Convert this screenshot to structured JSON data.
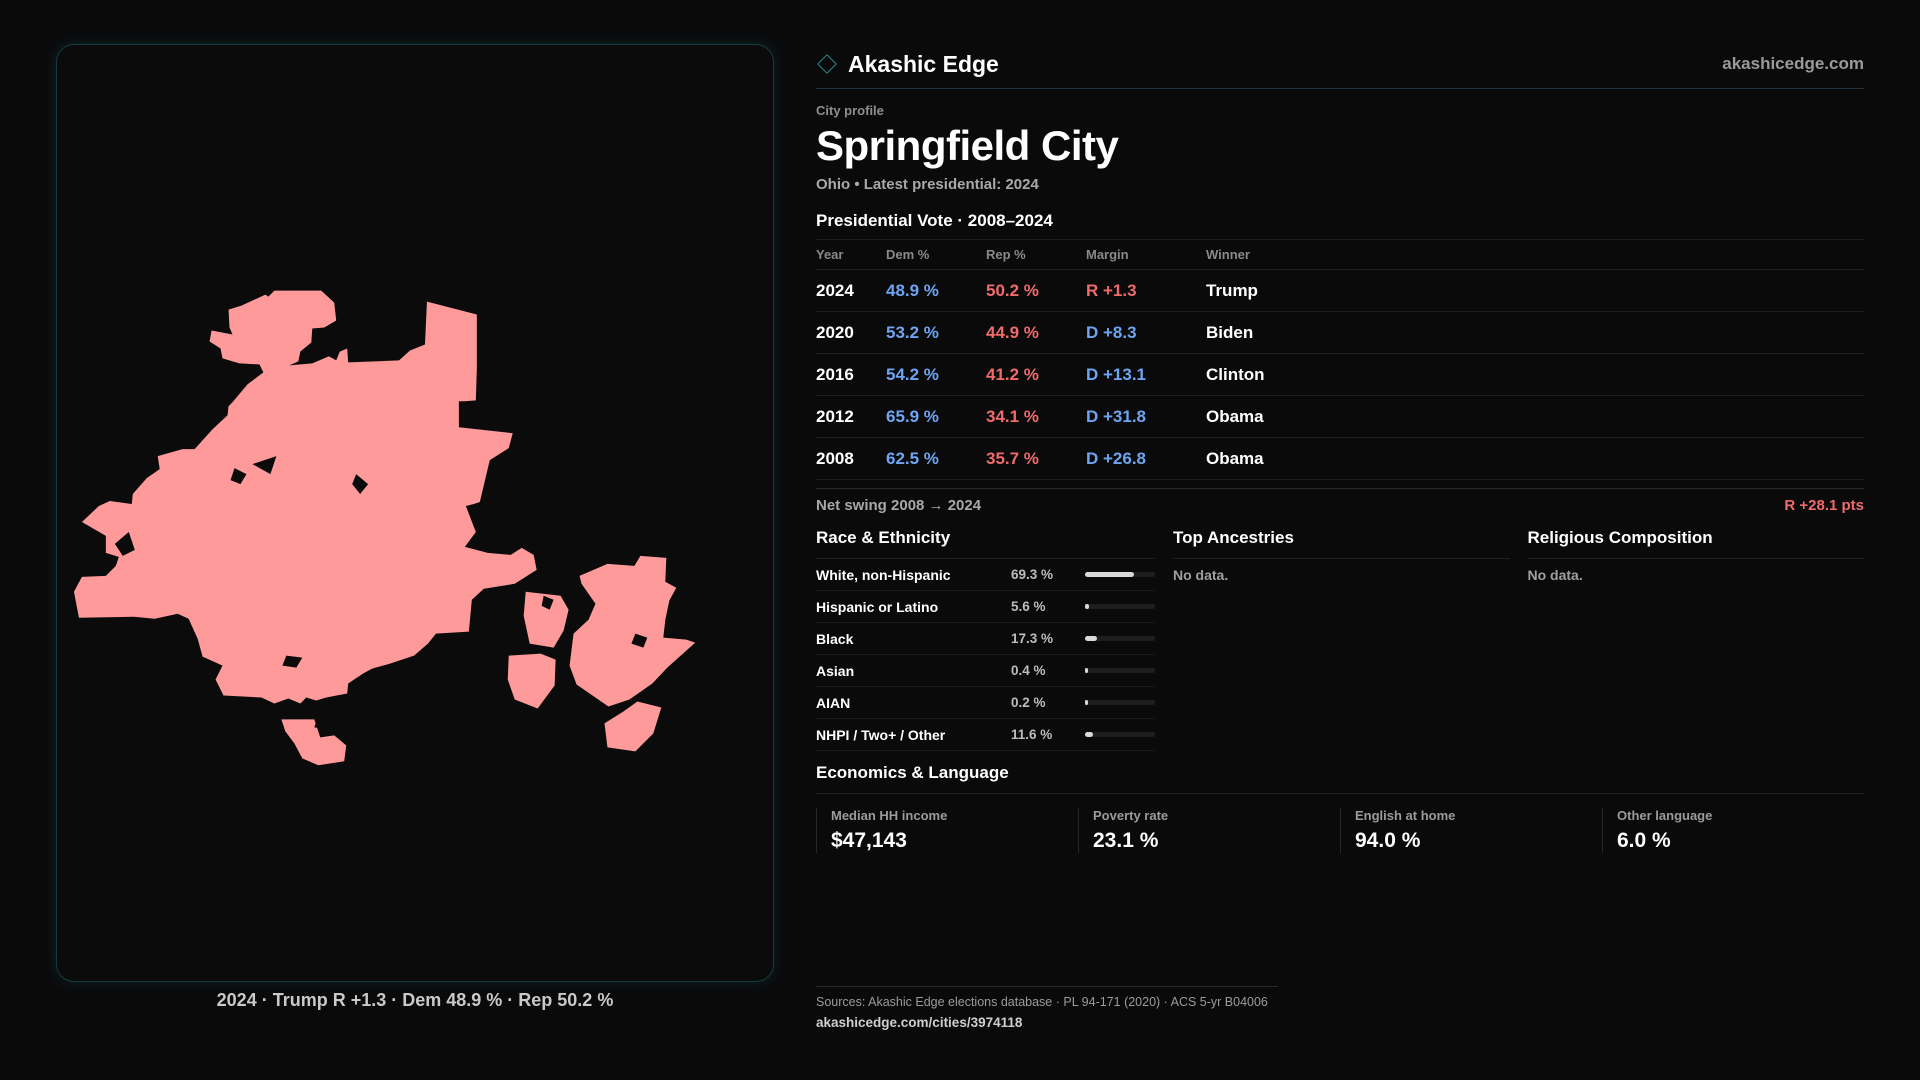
{
  "brand": {
    "name": "Akashic Edge",
    "site": "akashicedge.com",
    "icon": "diamond-icon",
    "accent": "#1d8f96"
  },
  "profile": {
    "eyebrow": "City profile",
    "city": "Springfield City",
    "subtitle": "Ohio • Latest presidential: 2024"
  },
  "map": {
    "fill": "#ff9a9a",
    "caption": "2024 · Trump R +1.3 · Dem 48.9 % · Rep 50.2 %"
  },
  "votes": {
    "title": "Presidential Vote · 2008–2024",
    "headers": {
      "year": "Year",
      "dem": "Dem %",
      "rep": "Rep %",
      "margin": "Margin",
      "winner": "Winner"
    },
    "rows": [
      {
        "year": "2024",
        "dem": "48.9 %",
        "rep": "50.2 %",
        "margin": "R +1.3",
        "winner": "Trump"
      },
      {
        "year": "2020",
        "dem": "53.2 %",
        "rep": "44.9 %",
        "margin": "D +8.3",
        "winner": "Biden"
      },
      {
        "year": "2016",
        "dem": "54.2 %",
        "rep": "41.2 %",
        "margin": "D +13.1",
        "winner": "Clinton"
      },
      {
        "year": "2012",
        "dem": "65.9 %",
        "rep": "34.1 %",
        "margin": "D +31.8",
        "winner": "Obama"
      },
      {
        "year": "2008",
        "dem": "62.5 %",
        "rep": "35.7 %",
        "margin": "D +26.8",
        "winner": "Obama"
      }
    ],
    "swing_label": "Net swing 2008 → 2024",
    "swing_value": "R +28.1 pts",
    "colors": {
      "dem": "#6ea5f2",
      "rep": "#f06b6b"
    }
  },
  "race": {
    "title": "Race & Ethnicity",
    "rows": [
      {
        "label": "White, non-Hispanic",
        "value": "69.3 %",
        "pct": 69.3
      },
      {
        "label": "Hispanic or Latino",
        "value": "5.6 %",
        "pct": 5.6
      },
      {
        "label": "Black",
        "value": "17.3 %",
        "pct": 17.3
      },
      {
        "label": "Asian",
        "value": "0.4 %",
        "pct": 0.4
      },
      {
        "label": "AIAN",
        "value": "0.2 %",
        "pct": 0.2
      },
      {
        "label": "NHPI / Two+ / Other",
        "value": "11.6 %",
        "pct": 11.6
      }
    ]
  },
  "ancestries": {
    "title": "Top Ancestries",
    "empty": "No data."
  },
  "religion": {
    "title": "Religious Composition",
    "empty": "No data."
  },
  "economics": {
    "title": "Economics & Language",
    "items": [
      {
        "label": "Median HH income",
        "value": "$47,143"
      },
      {
        "label": "Poverty rate",
        "value": "23.1 %"
      },
      {
        "label": "English at home",
        "value": "94.0 %"
      },
      {
        "label": "Other language",
        "value": "6.0 %"
      }
    ]
  },
  "footer": {
    "sources": "Sources: Akashic Edge elections database · PL 94-171 (2020) · ACS 5-yr B04006",
    "url": "akashicedge.com/cities/3974118"
  }
}
